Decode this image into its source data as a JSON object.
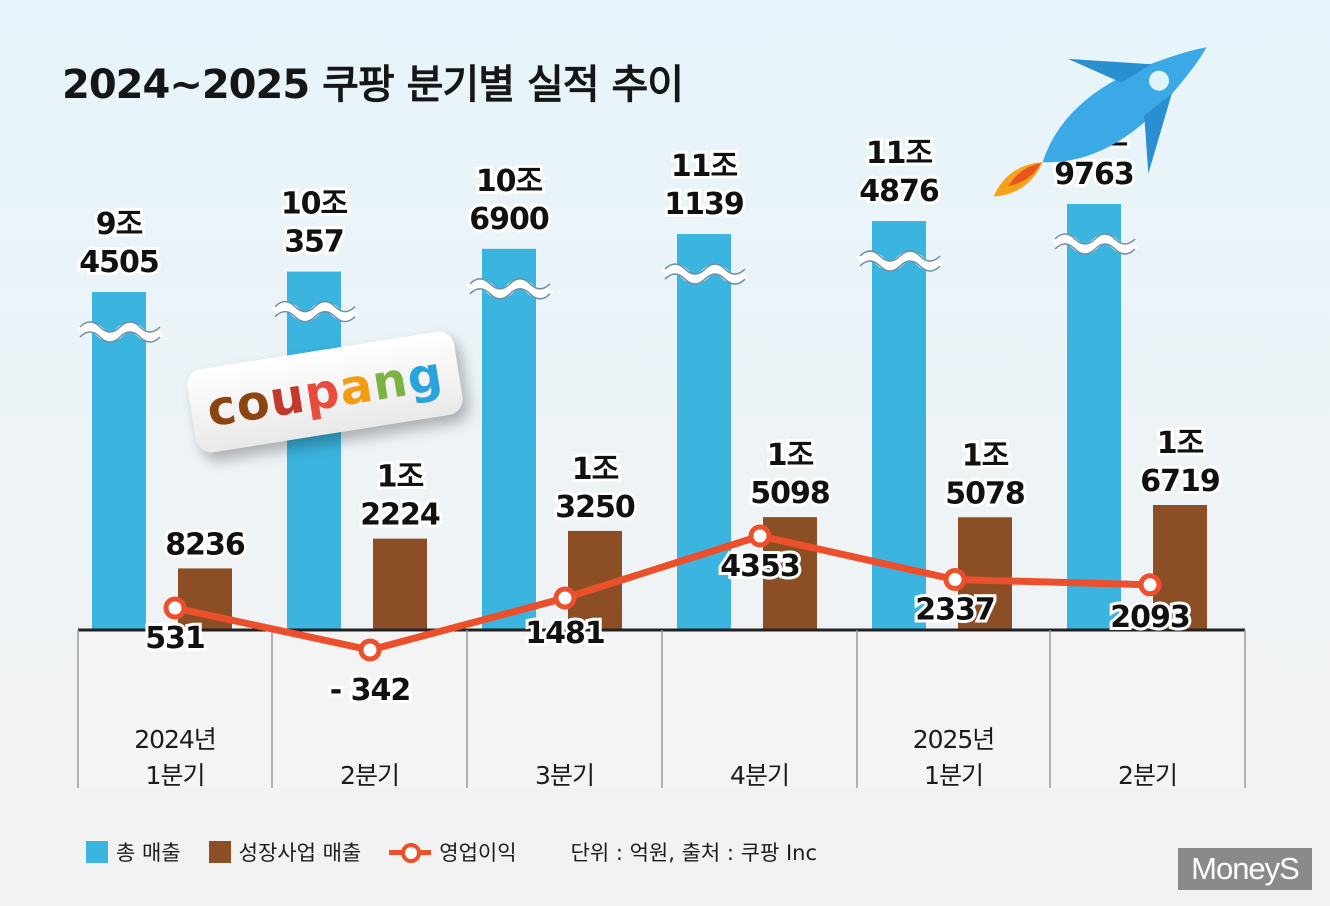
{
  "title": "2024~2025 쿠팡 분기별 실적 추이",
  "chart_data": {
    "type": "bar",
    "categories": [
      {
        "year": "2024년",
        "quarter": "1분기"
      },
      {
        "year": "",
        "quarter": "2분기"
      },
      {
        "year": "",
        "quarter": "3분기"
      },
      {
        "year": "",
        "quarter": "4분기"
      },
      {
        "year": "2025년",
        "quarter": "1분기"
      },
      {
        "year": "",
        "quarter": "2분기"
      }
    ],
    "series": [
      {
        "name": "총 매출",
        "type": "bar",
        "color": "#3bb4df",
        "values": [
          94505,
          100357,
          106900,
          111139,
          114876,
          119763
        ],
        "labels": [
          [
            "9조",
            "4505"
          ],
          [
            "10조",
            "357"
          ],
          [
            "10조",
            "6900"
          ],
          [
            "11조",
            "1139"
          ],
          [
            "11조",
            "4876"
          ],
          [
            "11조",
            "9763"
          ]
        ],
        "axis_break": true
      },
      {
        "name": "성장사업 매출",
        "type": "bar",
        "color": "#8b4e25",
        "values": [
          8236,
          12224,
          13250,
          15098,
          15078,
          16719
        ],
        "labels": [
          [
            "",
            "8236"
          ],
          [
            "1조",
            "2224"
          ],
          [
            "1조",
            "3250"
          ],
          [
            "1조",
            "5098"
          ],
          [
            "1조",
            "5078"
          ],
          [
            "1조",
            "6719"
          ]
        ]
      },
      {
        "name": "영업이익",
        "type": "line",
        "color": "#ec4f2c",
        "values": [
          531,
          -342,
          1481,
          4353,
          2337,
          2093
        ],
        "labels": [
          "531",
          "- 342",
          "1481",
          "4353",
          "2337",
          "2093"
        ]
      }
    ],
    "note": "단위 : 억원, 출처 : 쿠팡 Inc"
  },
  "logo": {
    "letters": [
      "c",
      "o",
      "u",
      "p",
      "a",
      "n",
      "g"
    ],
    "colors": [
      "#8b4513",
      "#8b4513",
      "#c0392b",
      "#e74c3c",
      "#f39c12",
      "#7cb342",
      "#29a3d9"
    ]
  },
  "brand": "MoneyS"
}
